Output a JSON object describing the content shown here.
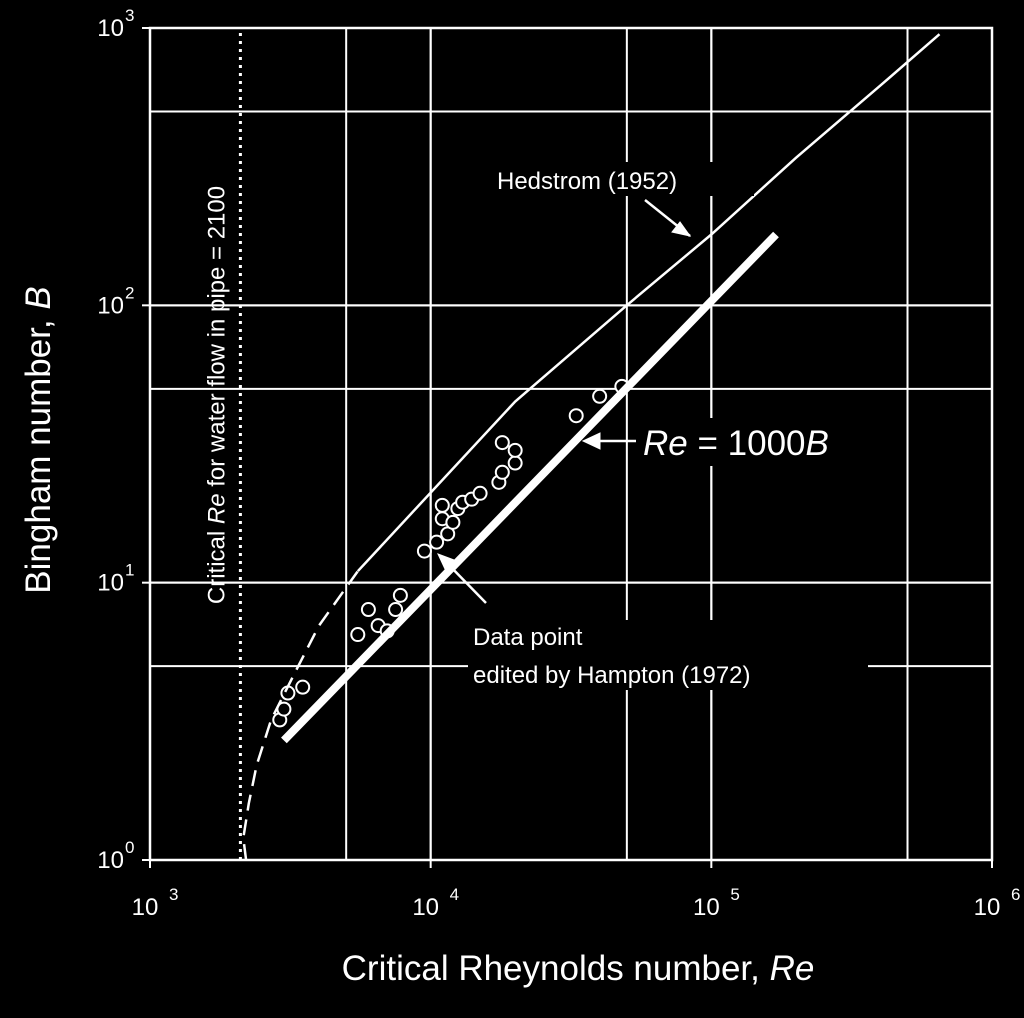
{
  "chart_data": {
    "type": "scatter",
    "title": "",
    "xlabel": {
      "text": "Critical Rheynolds number, ",
      "var": "Re"
    },
    "ylabel": {
      "text": "Bingham number, ",
      "var": "B"
    },
    "x_scale": "log",
    "y_scale": "log",
    "xlim": [
      1000,
      1000000
    ],
    "ylim": [
      1,
      1000
    ],
    "x_ticks": [
      {
        "value": 1000,
        "base": "10",
        "exp": "3"
      },
      {
        "value": 10000,
        "base": "10",
        "exp": "4"
      },
      {
        "value": 100000,
        "base": "10",
        "exp": "5"
      },
      {
        "value": 1000000,
        "base": "10",
        "exp": "6"
      }
    ],
    "y_ticks": [
      {
        "value": 1,
        "base": "10",
        "exp": "0"
      },
      {
        "value": 10,
        "base": "10",
        "exp": "1"
      },
      {
        "value": 100,
        "base": "10",
        "exp": "2"
      },
      {
        "value": 1000,
        "base": "10",
        "exp": "3"
      }
    ],
    "x_gridlines": [
      5000,
      10000,
      50000,
      100000,
      500000
    ],
    "y_gridlines": [
      5,
      10,
      50,
      100,
      500
    ],
    "grid": true,
    "series": [
      {
        "kind": "points",
        "marker": "open-circle",
        "x": [
          2900,
          3000,
          3100,
          3500,
          5500,
          6000,
          6500,
          7000,
          7500,
          7800,
          9500,
          10500,
          11000,
          11000,
          11500,
          12000,
          12500,
          13000,
          14000,
          15000,
          17500,
          18000,
          18000,
          20000,
          20000,
          33000,
          40000,
          48000
        ],
        "y": [
          3.2,
          3.5,
          4.0,
          4.2,
          6.5,
          8.0,
          7.0,
          6.7,
          8.0,
          9.0,
          13,
          14,
          19,
          17,
          15,
          16.5,
          18.5,
          19.5,
          20,
          21,
          23,
          25,
          32,
          27,
          30,
          40,
          47,
          51
        ]
      },
      {
        "name": "Hedstrom (1952)",
        "kind": "line",
        "x": [
          5500,
          20000,
          50000,
          100000,
          200000,
          400000,
          650000
        ],
        "y": [
          11,
          45,
          100,
          180,
          340,
          620,
          950
        ]
      },
      {
        "kind": "dashed-line",
        "x": [
          2200,
          2150,
          2250,
          2400,
          2700,
          3200,
          4000,
          5500
        ],
        "y": [
          1.0,
          1.2,
          1.6,
          2.2,
          3.2,
          4.5,
          7,
          11
        ]
      },
      {
        "name": "Re = 1000B",
        "kind": "thick-line",
        "x": [
          3000,
          170000
        ],
        "y": [
          2.7,
          180
        ]
      },
      {
        "kind": "dotted-vertical",
        "x": [
          2100,
          2100
        ],
        "y": [
          1,
          1000
        ]
      }
    ],
    "annotations": [
      {
        "id": "critical",
        "parts": [
          [
            "Critical ",
            false
          ],
          [
            "Re",
            true
          ],
          [
            " for water flow in pipe = 2100",
            false
          ]
        ]
      },
      {
        "id": "hedstrom",
        "parts": [
          [
            "Hedstrom (1952)",
            false
          ]
        ]
      },
      {
        "id": "re-eq",
        "parts": [
          [
            "Re",
            true
          ],
          [
            " = 1000",
            false
          ],
          [
            "B",
            true
          ]
        ]
      },
      {
        "id": "data-1",
        "parts": [
          [
            "Data point",
            false
          ]
        ]
      },
      {
        "id": "data-2",
        "parts": [
          [
            "edited by Hampton (1972)",
            false
          ]
        ]
      }
    ]
  }
}
